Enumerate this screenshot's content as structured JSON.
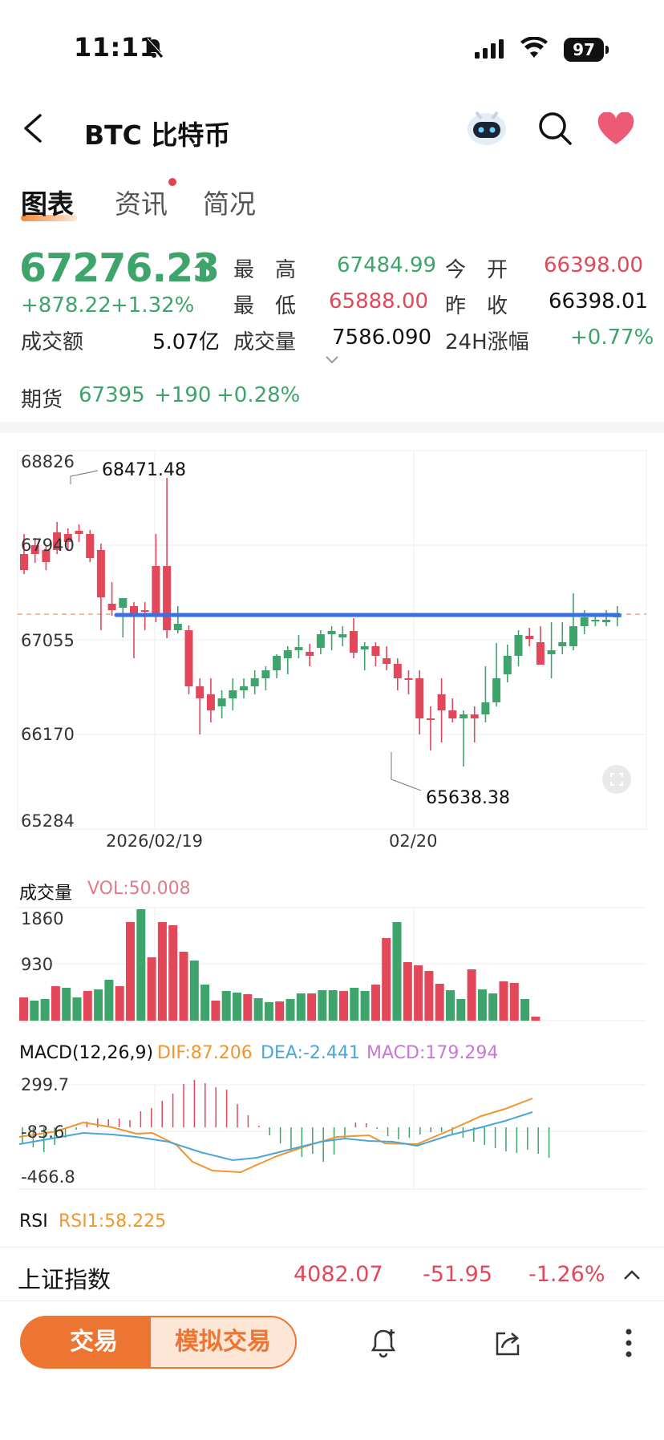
{
  "status_bar": {
    "time": "11:11",
    "battery": "97"
  },
  "nav": {
    "title": "BTC  比特币"
  },
  "tabs": [
    {
      "label": "图表",
      "active": true
    },
    {
      "label": "资讯",
      "active": false,
      "has_dot": true
    },
    {
      "label": "简况",
      "active": false
    }
  ],
  "quote": {
    "price": "67276.23",
    "change": "+878.22",
    "change_pct": "+1.32%",
    "high_label": "最　高",
    "high": "67484.99",
    "low_label": "最　低",
    "low": "65888.00",
    "open_label": "今　开",
    "open": "66398.00",
    "prev_close_label": "昨　收",
    "prev_close": "66398.01",
    "turnover_label": "成交额",
    "turnover": "5.07亿",
    "volume_label": "成交量",
    "volume": "7586.090",
    "change24h_label": "24H涨幅",
    "change24h": "+0.77%"
  },
  "futures": {
    "label": "期货",
    "price": "67395",
    "change": "+190",
    "change_pct": "+0.28%"
  },
  "price_chart": {
    "y_ticks": [
      "68826",
      "67940",
      "67055",
      "66170",
      "65284"
    ],
    "x_ticks": [
      "2026/02/19",
      "02/20"
    ],
    "max_label": "68471.48",
    "min_label": "65638.38"
  },
  "volume_panel": {
    "title": "成交量",
    "vol": "VOL:50.008",
    "ticks": [
      "1860",
      "930"
    ]
  },
  "macd_panel": {
    "title": "MACD(12,26,9)",
    "dif": "DIF:87.206",
    "dea": "DEA:-2.441",
    "macd": "MACD:179.294",
    "ticks": [
      "299.7",
      "-83.6",
      "-466.8"
    ]
  },
  "rsi_panel": {
    "title": "RSI",
    "rsi1": "RSI1:58.225"
  },
  "ticker": {
    "name": "上证指数",
    "value": "4082.07",
    "change": "-51.95",
    "change_pct": "-1.26%"
  },
  "bottom_bar": {
    "trade": "交易",
    "sim_trade": "模拟交易"
  },
  "colors": {
    "up": "#3ea46c",
    "down": "#e2475a",
    "accent": "#ec7532",
    "line": "#3a6fe0"
  }
}
